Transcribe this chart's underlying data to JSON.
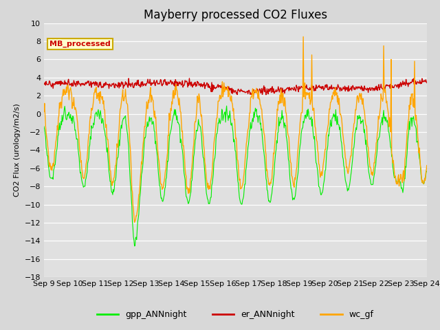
{
  "title": "Mayberry processed CO2 Fluxes",
  "ylabel": "CO2 Flux (urology/m2/s)",
  "ylim": [
    -18,
    10
  ],
  "yticks": [
    -18,
    -16,
    -14,
    -12,
    -10,
    -8,
    -6,
    -4,
    -2,
    0,
    2,
    4,
    6,
    8,
    10
  ],
  "fig_bg": "#d8d8d8",
  "axes_bg": "#e0e0e0",
  "line_colors": {
    "gpp": "#00ee00",
    "er": "#cc0000",
    "wc": "#ffa500"
  },
  "line_widths": {
    "gpp": 0.8,
    "er": 1.0,
    "wc": 1.0
  },
  "legend_label": "MB_processed",
  "legend_bg": "#ffffcc",
  "legend_border": "#ccaa00",
  "n_days": 15,
  "pts_per_day": 48
}
